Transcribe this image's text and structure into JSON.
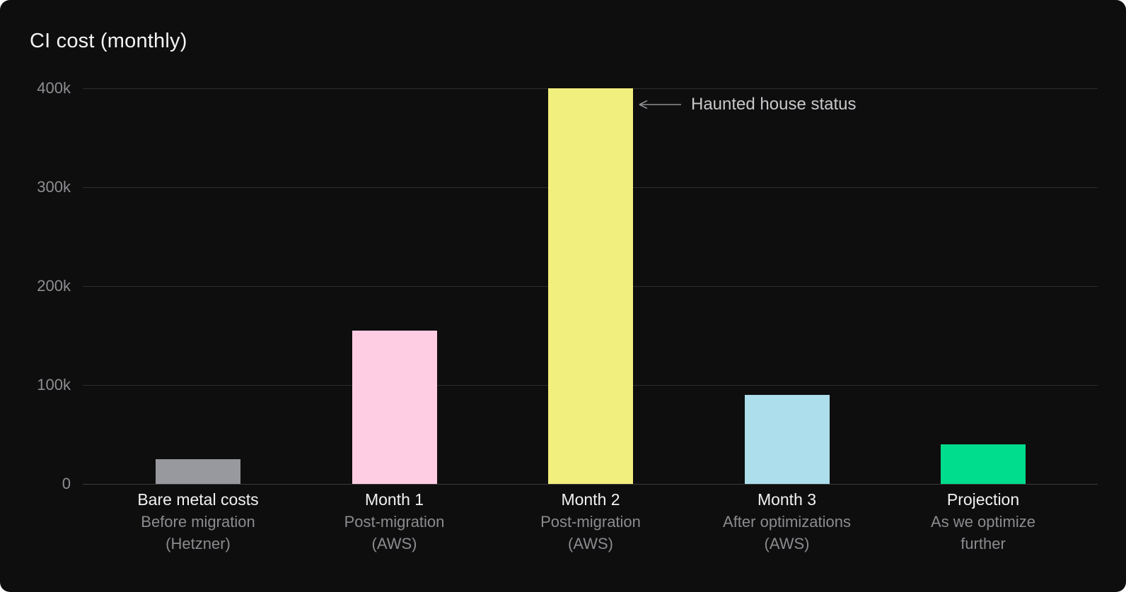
{
  "card": {
    "background": "#0e0e0e",
    "title": "CI cost (monthly)"
  },
  "chart_data": {
    "type": "bar",
    "title": "CI cost (monthly)",
    "xlabel": "",
    "ylabel": "",
    "ylim": [
      0,
      400000
    ],
    "grid": true,
    "yticks": [
      {
        "label": "400k",
        "value": 400000
      },
      {
        "label": "300k",
        "value": 300000
      },
      {
        "label": "200k",
        "value": 200000
      },
      {
        "label": "100k",
        "value": 100000
      },
      {
        "label": "0",
        "value": 0
      }
    ],
    "categories": [
      "Bare metal costs",
      "Month 1",
      "Month 2",
      "Month 3",
      "Projection"
    ],
    "subtitle_lines": [
      [
        "Before migration",
        "(Hetzner)"
      ],
      [
        "Post-migration",
        "(AWS)"
      ],
      [
        "Post-migration",
        "(AWS)"
      ],
      [
        "After optimizations",
        "(AWS)"
      ],
      [
        "As we optimize",
        "further"
      ]
    ],
    "values": [
      25000,
      155000,
      400000,
      90000,
      40000
    ],
    "bar_colors": [
      "#97999e",
      "#ffcde3",
      "#f1ef7d",
      "#addeeb",
      "#00dd8d"
    ],
    "annotation": {
      "text": "Haunted house status",
      "points_to": "Month 2",
      "arrow_direction": "left",
      "arrow_color": "#8f8f94",
      "text_color": "#c8c8cc"
    }
  }
}
